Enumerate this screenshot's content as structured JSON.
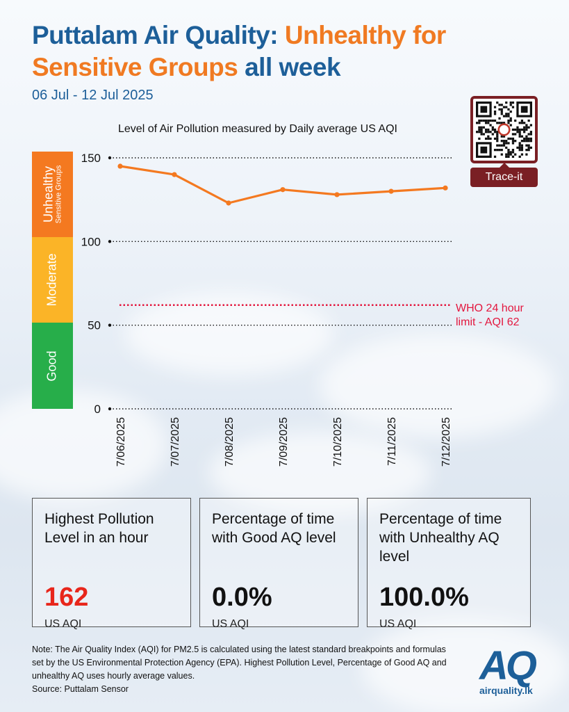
{
  "header": {
    "title_part1": "Puttalam Air Quality: ",
    "title_part2": "Unhealthy for Sensitive Groups",
    "title_part3": " all week",
    "date_range": "06 Jul - 12 Jul 2025"
  },
  "qr": {
    "button_label": "Trace-it"
  },
  "bands": {
    "unhealthy_label": "Unhealthy",
    "unhealthy_sub": "Sensitive Groups",
    "moderate_label": "Moderate",
    "good_label": "Good",
    "colors": {
      "unhealthy": "#f47920",
      "moderate": "#fbb427",
      "good": "#27ae4a"
    }
  },
  "who_limit": {
    "label_line1": "WHO 24 hour",
    "label_line2": "limit - AQI 62",
    "value": 62,
    "color": "#e3173e"
  },
  "chart_data": {
    "type": "line",
    "title": "Level of Air Pollution measured by Daily average US AQI",
    "categories": [
      "7/06/2025",
      "7/07/2025",
      "7/08/2025",
      "7/09/2025",
      "7/10/2025",
      "7/11/2025",
      "7/12/2025"
    ],
    "values": [
      145,
      140,
      123,
      131,
      128,
      130,
      132
    ],
    "yticks": [
      0,
      50,
      100,
      150
    ],
    "ylim": [
      0,
      150
    ],
    "line_color": "#f47920"
  },
  "cards": [
    {
      "title": "Highest Pollution Level in an hour",
      "value": "162",
      "unit": "US AQI",
      "value_color": "#e8261b"
    },
    {
      "title": "Percentage of time with Good AQ level",
      "value": "0.0%",
      "unit": "US AQI",
      "value_color": "#111111"
    },
    {
      "title": "Percentage of time with Unhealthy AQ level",
      "value": "100.0%",
      "unit": "US AQI",
      "value_color": "#111111"
    }
  ],
  "note": {
    "text": "Note: The Air Quality Index (AQI) for PM2.5 is calculated using the latest standard breakpoints and formulas set by the US Environmental Protection Agency (EPA). Highest Pollution Level, Percentage of Good AQ and unhealthy AQ uses hourly average values.",
    "source": "Source: Puttalam Sensor"
  },
  "logo": {
    "mark": "AQ",
    "text": "airquality.lk"
  }
}
